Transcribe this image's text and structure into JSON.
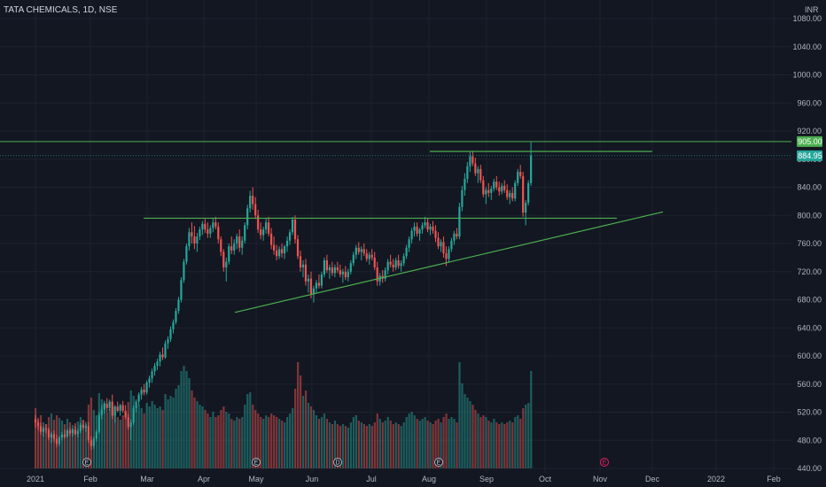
{
  "title": "TATA CHEMICALS, 1D, NSE",
  "currency_label": "INR",
  "colors": {
    "background": "#131722",
    "grid": "#1e222d",
    "up": "#26a69a",
    "down": "#ef5350",
    "trendline": "#4caf50",
    "badge_green": "#4caf50",
    "badge_teal": "#26a69a"
  },
  "chart_data": {
    "type": "candlestick",
    "symbol": "TATA CHEMICALS",
    "interval": "1D",
    "exchange": "NSE",
    "currency": "INR",
    "ylim": [
      440,
      1100
    ],
    "y_ticks": [
      "1080.00",
      "1040.00",
      "1000.00",
      "960.00",
      "920.00",
      "880.00",
      "840.00",
      "800.00",
      "760.00",
      "720.00",
      "680.00",
      "640.00",
      "600.00",
      "560.00",
      "520.00",
      "480.00",
      "440.00"
    ],
    "x_ticks": [
      "2021",
      "Feb",
      "Mar",
      "Apr",
      "May",
      "Jun",
      "Jul",
      "Aug",
      "Sep",
      "Oct",
      "Nov",
      "Dec",
      "2022",
      "Feb"
    ],
    "price_labels": [
      {
        "value": 905.0,
        "text": "905.00",
        "color": "#4caf50"
      },
      {
        "value": 884.95,
        "text": "884.95",
        "color": "#26a69a"
      }
    ],
    "event_markers": [
      {
        "month": "Feb",
        "day": 1,
        "letter": "E"
      },
      {
        "month": "May",
        "day": 1,
        "letter": "E"
      },
      {
        "month": "Jun",
        "day": 15,
        "letter": "D"
      },
      {
        "month": "Aug",
        "day": 5,
        "letter": "E"
      },
      {
        "month": "Oct",
        "day": 31,
        "letter": "E"
      }
    ],
    "trendlines": [
      {
        "name": "resistance",
        "from": {
          "month": "Aug",
          "day": 1,
          "price": 891
        },
        "to": {
          "month": "Nov",
          "day": 29,
          "price": 891
        }
      },
      {
        "name": "neckline",
        "from": {
          "month": "Mar",
          "day": 1,
          "price": 796
        },
        "to": {
          "month": "Oct",
          "day": 27,
          "price": 796
        }
      },
      {
        "name": "support",
        "from": {
          "month": "Apr",
          "day": 16,
          "price": 662
        },
        "to": {
          "month": "Dec",
          "day": 7,
          "price": 805
        }
      },
      {
        "name": "breakout",
        "from": {
          "month": "Jan",
          "day": 1,
          "price": 905
        },
        "to": {
          "month": "Feb",
          "day": 28,
          "price": 905
        }
      }
    ],
    "candles": [
      [
        510,
        516,
        498,
        505,
        68
      ],
      [
        505,
        512,
        495,
        500,
        55
      ],
      [
        500,
        505,
        488,
        492,
        60
      ],
      [
        492,
        500,
        485,
        497,
        52
      ],
      [
        497,
        503,
        490,
        495,
        50
      ],
      [
        495,
        498,
        480,
        484,
        58
      ],
      [
        484,
        492,
        476,
        489,
        62
      ],
      [
        489,
        494,
        478,
        482,
        55
      ],
      [
        482,
        488,
        470,
        475,
        60
      ],
      [
        475,
        486,
        472,
        484,
        57
      ],
      [
        484,
        492,
        480,
        488,
        54
      ],
      [
        488,
        495,
        482,
        485,
        50
      ],
      [
        485,
        496,
        484,
        494,
        56
      ],
      [
        494,
        498,
        486,
        490,
        52
      ],
      [
        490,
        497,
        485,
        495,
        49
      ],
      [
        495,
        500,
        487,
        489,
        51
      ],
      [
        489,
        496,
        484,
        493,
        53
      ],
      [
        493,
        505,
        490,
        502,
        58
      ],
      [
        502,
        508,
        495,
        498,
        55
      ],
      [
        498,
        506,
        492,
        500,
        50
      ],
      [
        500,
        506,
        476,
        480,
        72
      ],
      [
        480,
        486,
        466,
        472,
        80
      ],
      [
        472,
        485,
        468,
        482,
        66
      ],
      [
        482,
        495,
        478,
        492,
        60
      ],
      [
        492,
        520,
        489,
        516,
        85
      ],
      [
        516,
        530,
        510,
        524,
        78
      ],
      [
        524,
        536,
        518,
        532,
        74
      ],
      [
        532,
        540,
        520,
        526,
        63
      ],
      [
        526,
        538,
        522,
        535,
        67
      ],
      [
        535,
        545,
        510,
        515,
        70
      ],
      [
        515,
        530,
        505,
        528,
        64
      ],
      [
        528,
        535,
        520,
        522,
        58
      ],
      [
        522,
        532,
        515,
        530,
        55
      ],
      [
        530,
        536,
        519,
        522,
        60
      ],
      [
        522,
        530,
        510,
        513,
        62
      ],
      [
        513,
        518,
        495,
        499,
        75
      ],
      [
        499,
        510,
        480,
        505,
        88
      ],
      [
        505,
        530,
        502,
        526,
        82
      ],
      [
        526,
        538,
        520,
        535,
        70
      ],
      [
        535,
        548,
        530,
        545,
        72
      ],
      [
        545,
        556,
        538,
        552,
        68
      ],
      [
        552,
        560,
        544,
        548,
        62
      ],
      [
        548,
        565,
        545,
        562,
        74
      ],
      [
        562,
        572,
        555,
        568,
        70
      ],
      [
        568,
        582,
        562,
        578,
        76
      ],
      [
        578,
        590,
        572,
        586,
        72
      ],
      [
        586,
        596,
        580,
        592,
        68
      ],
      [
        592,
        606,
        585,
        602,
        70
      ],
      [
        602,
        612,
        594,
        598,
        66
      ],
      [
        598,
        622,
        596,
        618,
        84
      ],
      [
        618,
        628,
        610,
        624,
        78
      ],
      [
        624,
        642,
        620,
        638,
        82
      ],
      [
        638,
        652,
        632,
        648,
        80
      ],
      [
        648,
        668,
        645,
        664,
        90
      ],
      [
        664,
        684,
        660,
        680,
        94
      ],
      [
        680,
        712,
        676,
        708,
        110
      ],
      [
        708,
        738,
        704,
        734,
        116
      ],
      [
        734,
        760,
        730,
        756,
        110
      ],
      [
        756,
        782,
        750,
        776,
        102
      ],
      [
        776,
        790,
        760,
        770,
        88
      ],
      [
        770,
        785,
        752,
        760,
        80
      ],
      [
        760,
        775,
        748,
        770,
        76
      ],
      [
        770,
        784,
        765,
        780,
        72
      ],
      [
        780,
        792,
        772,
        788,
        70
      ],
      [
        788,
        795,
        775,
        780,
        66
      ],
      [
        780,
        790,
        768,
        774,
        62
      ],
      [
        774,
        786,
        768,
        782,
        58
      ],
      [
        782,
        796,
        776,
        790,
        64
      ],
      [
        790,
        798,
        780,
        784,
        58
      ],
      [
        784,
        790,
        760,
        766,
        60
      ],
      [
        766,
        770,
        742,
        748,
        66
      ],
      [
        748,
        752,
        720,
        726,
        70
      ],
      [
        726,
        740,
        706,
        734,
        64
      ],
      [
        734,
        760,
        730,
        756,
        62
      ],
      [
        756,
        770,
        745,
        750,
        56
      ],
      [
        750,
        766,
        744,
        760,
        54
      ],
      [
        760,
        774,
        752,
        770,
        58
      ],
      [
        770,
        780,
        748,
        754,
        56
      ],
      [
        754,
        770,
        744,
        764,
        58
      ],
      [
        764,
        790,
        760,
        786,
        72
      ],
      [
        786,
        815,
        780,
        810,
        84
      ],
      [
        810,
        835,
        804,
        828,
        86
      ],
      [
        828,
        840,
        808,
        816,
        72
      ],
      [
        816,
        826,
        795,
        800,
        66
      ],
      [
        800,
        808,
        775,
        780,
        62
      ],
      [
        780,
        790,
        766,
        772,
        58
      ],
      [
        772,
        784,
        764,
        780,
        56
      ],
      [
        780,
        796,
        774,
        790,
        60
      ],
      [
        790,
        798,
        770,
        774,
        58
      ],
      [
        774,
        782,
        752,
        758,
        62
      ],
      [
        758,
        770,
        744,
        750,
        60
      ],
      [
        750,
        758,
        736,
        742,
        58
      ],
      [
        742,
        756,
        738,
        752,
        56
      ],
      [
        752,
        760,
        740,
        746,
        54
      ],
      [
        746,
        758,
        738,
        756,
        52
      ],
      [
        756,
        770,
        748,
        764,
        58
      ],
      [
        764,
        780,
        758,
        776,
        62
      ],
      [
        776,
        798,
        772,
        794,
        68
      ],
      [
        794,
        800,
        760,
        766,
        90
      ],
      [
        766,
        772,
        738,
        742,
        120
      ],
      [
        742,
        750,
        720,
        726,
        105
      ],
      [
        726,
        736,
        712,
        730,
        82
      ],
      [
        730,
        738,
        700,
        706,
        88
      ],
      [
        706,
        716,
        690,
        710,
        74
      ],
      [
        710,
        720,
        682,
        688,
        70
      ],
      [
        688,
        700,
        676,
        696,
        66
      ],
      [
        696,
        708,
        690,
        704,
        60
      ],
      [
        704,
        716,
        696,
        700,
        56
      ],
      [
        700,
        720,
        696,
        716,
        58
      ],
      [
        716,
        740,
        712,
        736,
        62
      ],
      [
        736,
        744,
        718,
        722,
        56
      ],
      [
        722,
        730,
        710,
        726,
        52
      ],
      [
        726,
        734,
        714,
        718,
        50
      ],
      [
        718,
        730,
        712,
        726,
        54
      ],
      [
        726,
        734,
        718,
        722,
        50
      ],
      [
        722,
        730,
        712,
        716,
        48
      ],
      [
        716,
        724,
        704,
        720,
        50
      ],
      [
        720,
        728,
        708,
        712,
        48
      ],
      [
        712,
        724,
        706,
        720,
        46
      ],
      [
        720,
        736,
        716,
        732,
        52
      ],
      [
        732,
        748,
        728,
        744,
        58
      ],
      [
        744,
        758,
        738,
        754,
        60
      ],
      [
        754,
        762,
        744,
        748,
        54
      ],
      [
        748,
        756,
        736,
        752,
        52
      ],
      [
        752,
        760,
        742,
        746,
        50
      ],
      [
        746,
        752,
        734,
        738,
        48
      ],
      [
        738,
        748,
        730,
        744,
        50
      ],
      [
        744,
        752,
        736,
        740,
        48
      ],
      [
        740,
        748,
        722,
        726,
        52
      ],
      [
        726,
        734,
        700,
        706,
        62
      ],
      [
        706,
        718,
        700,
        714,
        56
      ],
      [
        714,
        722,
        704,
        710,
        52
      ],
      [
        710,
        726,
        706,
        722,
        54
      ],
      [
        722,
        738,
        716,
        734,
        58
      ],
      [
        734,
        744,
        726,
        730,
        54
      ],
      [
        730,
        738,
        720,
        726,
        50
      ],
      [
        726,
        740,
        722,
        736,
        52
      ],
      [
        736,
        744,
        724,
        728,
        50
      ],
      [
        728,
        736,
        720,
        732,
        48
      ],
      [
        732,
        746,
        728,
        742,
        52
      ],
      [
        742,
        758,
        738,
        754,
        58
      ],
      [
        754,
        770,
        748,
        766,
        62
      ],
      [
        766,
        782,
        760,
        778,
        64
      ],
      [
        778,
        790,
        770,
        784,
        60
      ],
      [
        784,
        790,
        770,
        774,
        56
      ],
      [
        774,
        782,
        764,
        780,
        54
      ],
      [
        780,
        790,
        774,
        786,
        56
      ],
      [
        786,
        798,
        782,
        790,
        58
      ],
      [
        790,
        796,
        776,
        780,
        54
      ],
      [
        780,
        788,
        772,
        784,
        52
      ],
      [
        784,
        792,
        774,
        778,
        50
      ],
      [
        778,
        786,
        762,
        768,
        54
      ],
      [
        768,
        776,
        752,
        756,
        56
      ],
      [
        756,
        766,
        748,
        762,
        52
      ],
      [
        762,
        770,
        740,
        746,
        58
      ],
      [
        746,
        756,
        728,
        738,
        62
      ],
      [
        738,
        756,
        734,
        752,
        56
      ],
      [
        752,
        768,
        748,
        764,
        58
      ],
      [
        764,
        778,
        758,
        774,
        56
      ],
      [
        774,
        782,
        766,
        770,
        52
      ],
      [
        770,
        818,
        766,
        812,
        120
      ],
      [
        812,
        842,
        806,
        836,
        96
      ],
      [
        836,
        860,
        828,
        852,
        84
      ],
      [
        852,
        876,
        846,
        870,
        80
      ],
      [
        870,
        890,
        862,
        884,
        76
      ],
      [
        884,
        892,
        870,
        874,
        72
      ],
      [
        874,
        882,
        856,
        860,
        66
      ],
      [
        860,
        870,
        846,
        866,
        62
      ],
      [
        866,
        872,
        846,
        850,
        58
      ],
      [
        850,
        856,
        826,
        830,
        60
      ],
      [
        830,
        840,
        816,
        836,
        58
      ],
      [
        836,
        846,
        826,
        832,
        54
      ],
      [
        832,
        842,
        822,
        838,
        52
      ],
      [
        838,
        852,
        834,
        848,
        56
      ],
      [
        848,
        856,
        836,
        840,
        52
      ],
      [
        840,
        848,
        828,
        834,
        50
      ],
      [
        834,
        846,
        830,
        842,
        52
      ],
      [
        842,
        850,
        832,
        836,
        50
      ],
      [
        836,
        844,
        822,
        826,
        52
      ],
      [
        826,
        836,
        816,
        832,
        54
      ],
      [
        832,
        840,
        820,
        824,
        52
      ],
      [
        824,
        850,
        820,
        846,
        58
      ],
      [
        846,
        866,
        842,
        862,
        60
      ],
      [
        862,
        872,
        852,
        856,
        56
      ],
      [
        856,
        862,
        798,
        804,
        68
      ],
      [
        804,
        822,
        786,
        818,
        72
      ],
      [
        818,
        850,
        814,
        846,
        74
      ],
      [
        846,
        904,
        842,
        885,
        110
      ]
    ],
    "month_start_index": {
      "2021": 0,
      "Feb": 20,
      "Mar": 40,
      "Apr": 62,
      "May": 80,
      "Jun": 101,
      "Jul": 123,
      "Aug": 144,
      "Sep": 165,
      "Oct": 188,
      "Nov": 209,
      "Dec": 230,
      "2022": 252,
      "Feb2": 272
    }
  }
}
